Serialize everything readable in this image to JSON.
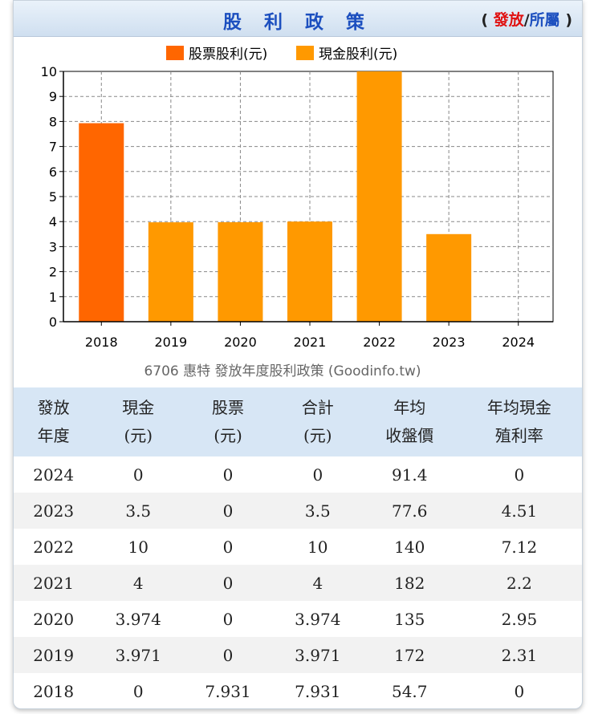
{
  "header": {
    "title": "股 利 政 策",
    "link_paren_open": "(",
    "link_issue": "發放",
    "link_sep": "/",
    "link_belong": "所屬",
    "link_paren_close": ")"
  },
  "chart_data": {
    "type": "bar",
    "title": "",
    "caption": "6706 惠特 發放年度股利政策 (Goodinfo.tw)",
    "categories": [
      "2018",
      "2019",
      "2020",
      "2021",
      "2022",
      "2023",
      "2024"
    ],
    "series": [
      {
        "name": "股票股利(元)",
        "color": "#ff6600",
        "values": [
          7.931,
          0,
          0,
          0,
          0,
          0,
          0
        ]
      },
      {
        "name": "現金股利(元)",
        "color": "#ff9900",
        "values": [
          0,
          3.971,
          3.974,
          4,
          10,
          3.5,
          0
        ]
      }
    ],
    "stacked": true,
    "ylim": [
      0,
      10
    ],
    "yticks": [
      "0",
      "1",
      "2",
      "3",
      "4",
      "5",
      "6",
      "7",
      "8",
      "9",
      "10"
    ],
    "grid": true,
    "legend": "top-center",
    "xlabel": "",
    "ylabel": ""
  },
  "table": {
    "headers": [
      [
        "發放",
        "年度"
      ],
      [
        "現金",
        "(元)"
      ],
      [
        "股票",
        "(元)"
      ],
      [
        "合計",
        "(元)"
      ],
      [
        "年均",
        "收盤價"
      ],
      [
        "年均現金",
        "殖利率"
      ]
    ],
    "rows": [
      [
        "2024",
        "0",
        "0",
        "0",
        "91.4",
        "0"
      ],
      [
        "2023",
        "3.5",
        "0",
        "3.5",
        "77.6",
        "4.51"
      ],
      [
        "2022",
        "10",
        "0",
        "10",
        "140",
        "7.12"
      ],
      [
        "2021",
        "4",
        "0",
        "4",
        "182",
        "2.2"
      ],
      [
        "2020",
        "3.974",
        "0",
        "3.974",
        "135",
        "2.95"
      ],
      [
        "2019",
        "3.971",
        "0",
        "3.971",
        "172",
        "2.31"
      ],
      [
        "2018",
        "0",
        "7.931",
        "7.931",
        "54.7",
        "0"
      ]
    ]
  }
}
